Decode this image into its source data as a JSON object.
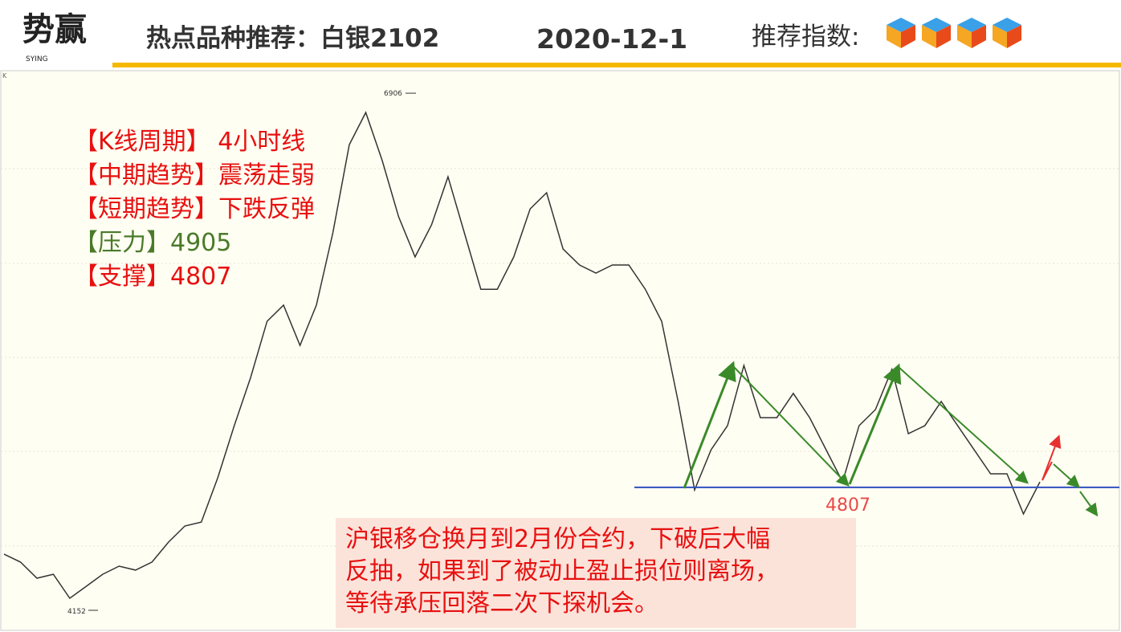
{
  "header": {
    "logo": "势赢",
    "logo_sub": "SYING",
    "title": "热点品种推荐：白银2102",
    "date": "2020-12-1",
    "rating_label": "推荐指数:"
  },
  "notes": [
    "【K线周期】 4小时线",
    "【中期趋势】震荡走弱",
    "【短期趋势】下跌反弹",
    "【压力】4905",
    "【支撑】4807"
  ],
  "callout": [
    "沪银移仓换月到2月份合约，下破后大幅",
    "反抽，如果到了被动止盈止损位则离场，",
    "等待承压回落二次下探机会。"
  ],
  "chart_data": {
    "type": "line",
    "color": "#333333",
    "axis_label": "K",
    "values": [
      4451,
      4409,
      4323,
      4344,
      4216,
      4280,
      4344,
      4387,
      4366,
      4409,
      4515,
      4601,
      4622,
      4858,
      5135,
      5392,
      5691,
      5777,
      5563,
      5777,
      6162,
      6632,
      6803,
      6547,
      6248,
      6034,
      6205,
      6461,
      6162,
      5862,
      5862,
      6034,
      6290,
      6376,
      6076,
      5991,
      5948,
      5991,
      5991,
      5862,
      5691,
      5264,
      4793,
      5007,
      5135,
      5456,
      5178,
      5178,
      5307,
      5178,
      5007,
      4836,
      5135,
      5221,
      5435,
      5093,
      5135,
      5264,
      5135,
      5007,
      4879,
      4879,
      4665,
      4836
    ],
    "ylim": [
      4045,
      7026
    ],
    "high": 6906,
    "low": 4152,
    "support": 4807
  }
}
